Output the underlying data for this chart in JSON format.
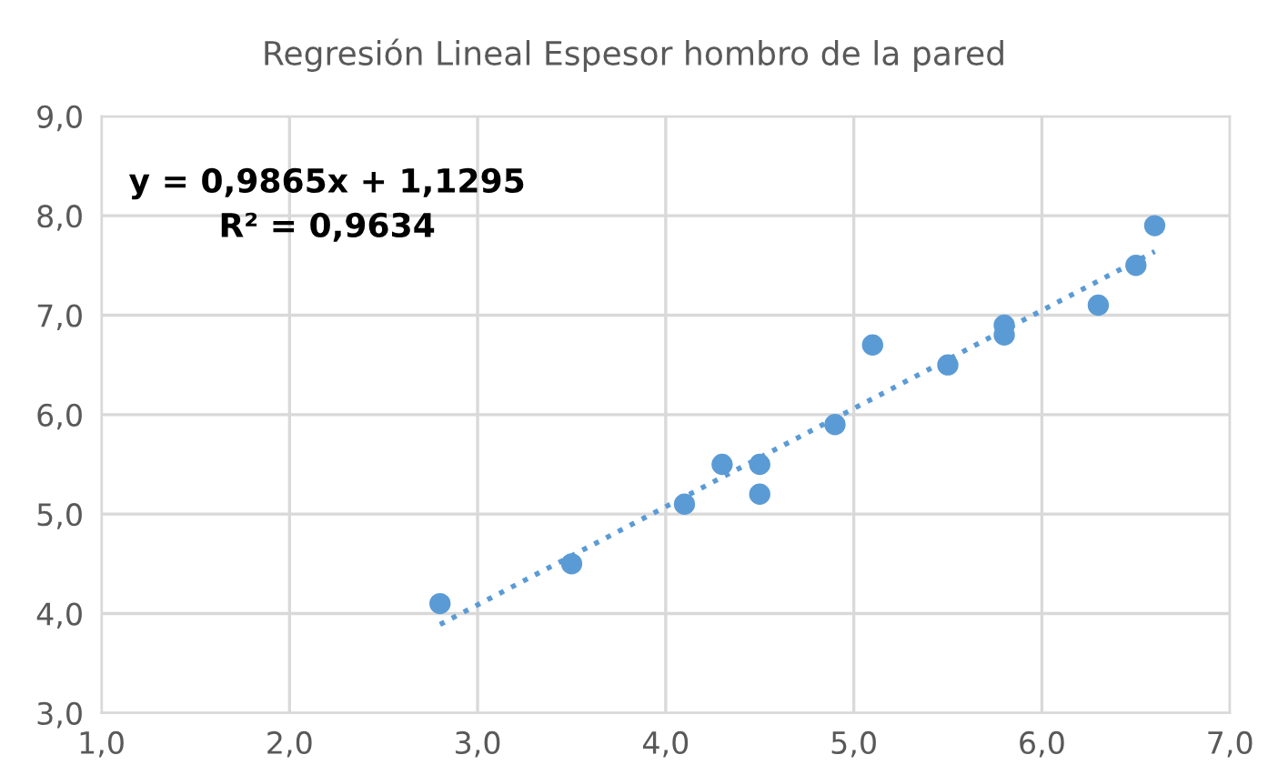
{
  "chart_data": {
    "type": "scatter",
    "title": "Regresión Lineal Espesor hombro de la pared",
    "series": [
      {
        "color": "#5b9bd5",
        "marker": "circle",
        "x": [
          2.8,
          3.5,
          4.1,
          4.3,
          4.5,
          4.5,
          4.9,
          5.1,
          5.5,
          5.8,
          5.8,
          6.3,
          6.5,
          6.6
        ],
        "values": [
          4.1,
          4.5,
          5.1,
          5.5,
          5.5,
          5.2,
          5.9,
          6.7,
          6.5,
          6.9,
          6.8,
          7.1,
          7.5,
          7.9
        ]
      },
      {
        "type": "line",
        "color": "#5b9bd5",
        "line_style": "dotted",
        "x": [
          2.8,
          6.6
        ],
        "values": [
          3.89,
          7.64
        ]
      }
    ],
    "xlim": [
      1,
      7
    ],
    "ylim": [
      3,
      9
    ],
    "xticks": [
      {
        "value": 1,
        "label": "1,0"
      },
      {
        "value": 2,
        "label": "2,0"
      },
      {
        "value": 3,
        "label": "3,0"
      },
      {
        "value": 4,
        "label": "4,0"
      },
      {
        "value": 5,
        "label": "5,0"
      },
      {
        "value": 6,
        "label": "6,0"
      },
      {
        "value": 7,
        "label": "7,0"
      }
    ],
    "yticks": [
      {
        "value": 3,
        "label": "3,0"
      },
      {
        "value": 4,
        "label": "4,0"
      },
      {
        "value": 5,
        "label": "5,0"
      },
      {
        "value": 6,
        "label": "6,0"
      },
      {
        "value": 7,
        "label": "7,0"
      },
      {
        "value": 8,
        "label": "8,0"
      },
      {
        "value": 9,
        "label": "9,0"
      }
    ],
    "grid": true,
    "annotations": [
      "y = 0,9865x + 1,1295\nR² = 0,9634"
    ]
  }
}
